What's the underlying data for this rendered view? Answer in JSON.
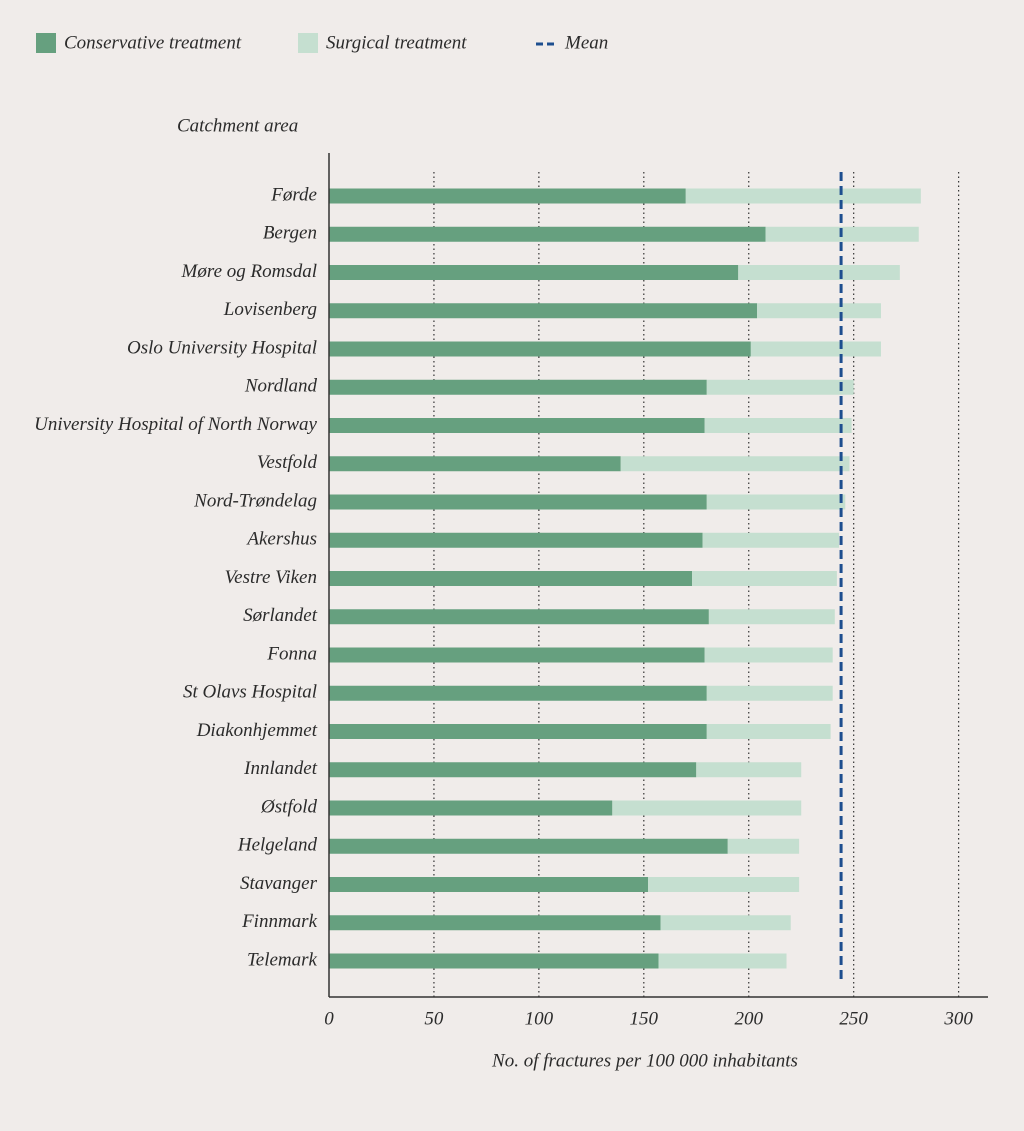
{
  "chart_data": {
    "type": "stacked-barh",
    "y_label": "Catchment area",
    "x_label": "No. of  fractures per 100 000 inhabitants",
    "categories": [
      "Førde",
      "Bergen",
      "Møre og Romsdal",
      "Lovisenberg",
      "Oslo University Hospital",
      "Nordland",
      "University Hospital of North Norway",
      "Vestfold",
      "Nord-Trøndelag",
      "Akershus",
      "Vestre Viken",
      "Sørlandet",
      "Fonna",
      "St Olavs Hospital",
      "Diakonhjemmet",
      "Innlandet",
      "Østfold",
      "Helgeland",
      "Stavanger",
      "Finnmark",
      "Telemark"
    ],
    "series": [
      {
        "name": "Conservative treatment",
        "color": "#66a07f",
        "values": [
          170,
          208,
          195,
          204,
          201,
          180,
          179,
          139,
          180,
          178,
          173,
          181,
          179,
          180,
          180,
          175,
          135,
          190,
          152,
          158,
          157
        ]
      },
      {
        "name": "Surgical treatment",
        "color": "#c5dfd0",
        "values": [
          112,
          73,
          77,
          59,
          62,
          70,
          70,
          109,
          66,
          65,
          69,
          60,
          61,
          60,
          59,
          50,
          90,
          34,
          72,
          62,
          61
        ]
      }
    ],
    "mean": {
      "name": "Mean",
      "value": 244,
      "color": "#1d4e8f"
    },
    "xlim": [
      0,
      314
    ],
    "xticks": [
      0,
      50,
      100,
      150,
      200,
      250,
      300
    ],
    "grid": true
  }
}
